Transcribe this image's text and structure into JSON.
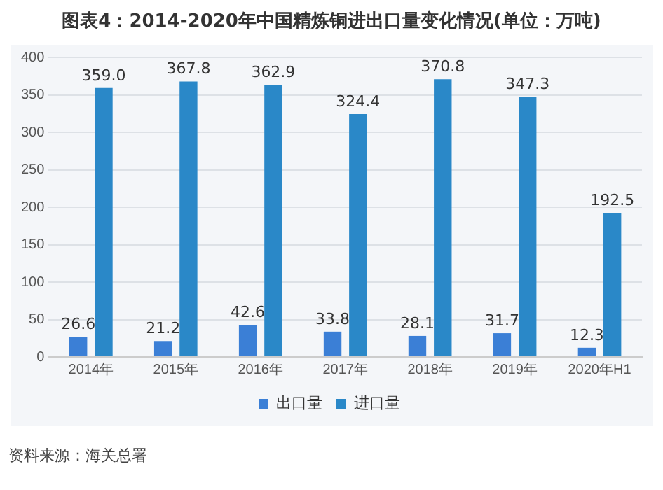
{
  "chart_data": {
    "type": "bar",
    "title": "图表4：2014-2020年中国精炼铜进出口量变化情况(单位：万吨)",
    "categories": [
      "2014年",
      "2015年",
      "2016年",
      "2017年",
      "2018年",
      "2019年",
      "2020年H1"
    ],
    "series": [
      {
        "name": "出口量",
        "color": "#3b7fd6",
        "values": [
          26.6,
          21.2,
          42.6,
          33.8,
          28.1,
          31.7,
          12.3
        ]
      },
      {
        "name": "进口量",
        "color": "#2a88c8",
        "values": [
          359.0,
          367.8,
          362.9,
          324.4,
          370.8,
          347.3,
          192.5
        ]
      }
    ],
    "value_labels": [
      [
        "26.6",
        "21.2",
        "42.6",
        "33.8",
        "28.1",
        "31.7",
        "12.3"
      ],
      [
        "359.0",
        "367.8",
        "362.9",
        "324.4",
        "370.8",
        "347.3",
        "192.5"
      ]
    ],
    "ylim": [
      0,
      400
    ],
    "yticks": [
      0,
      50,
      100,
      150,
      200,
      250,
      300,
      350,
      400
    ],
    "grid": "y",
    "legend": "bottom",
    "annotations": [
      "资料来源：海关总署"
    ]
  }
}
